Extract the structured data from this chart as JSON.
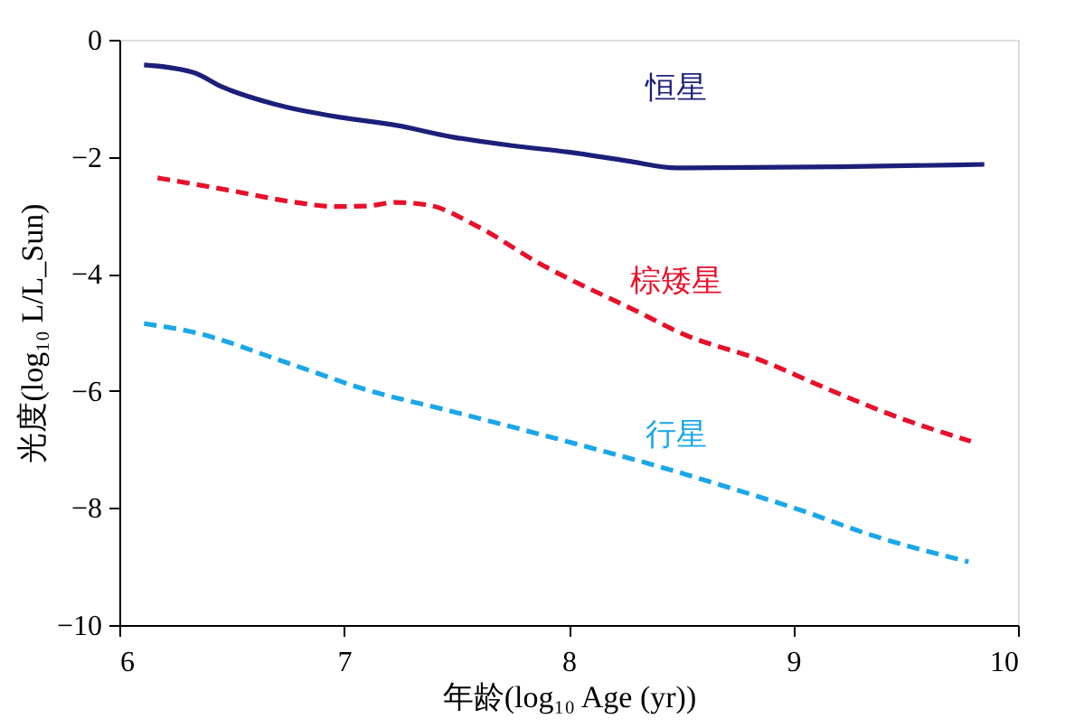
{
  "chart_data": {
    "type": "line",
    "xlabel": "年龄(log₁₀ Age (yr))",
    "ylabel": "光度(log₁₀ L/L_Sun)",
    "xlim": [
      6,
      10
    ],
    "xticks": [
      6,
      7,
      8,
      9,
      10
    ],
    "ylim": [
      -10,
      0
    ],
    "yticks": [
      -10,
      -8,
      -6,
      -4,
      -2,
      0
    ],
    "grid": false,
    "series": [
      {
        "name": "恒星",
        "color": "#1c1f7a",
        "line_style": "solid",
        "x": [
          6.11,
          6.33,
          6.46,
          6.69,
          6.99,
          7.23,
          7.48,
          7.75,
          8.0,
          8.26,
          8.48,
          9.21,
          9.85
        ],
        "values": [
          -0.43,
          -0.56,
          -0.81,
          -1.1,
          -1.33,
          -1.46,
          -1.66,
          -1.81,
          -1.92,
          -2.07,
          -2.19,
          -2.17,
          -2.13
        ]
      },
      {
        "name": "棕矮星",
        "color": "#e8102a",
        "line_style": "dashed",
        "x": [
          6.17,
          6.5,
          6.77,
          6.96,
          7.1,
          7.23,
          7.37,
          7.59,
          7.86,
          8.32,
          8.51,
          8.83,
          9.21,
          9.48,
          9.79
        ],
        "values": [
          -2.36,
          -2.58,
          -2.77,
          -2.85,
          -2.84,
          -2.78,
          -2.82,
          -3.18,
          -3.8,
          -4.67,
          -5.03,
          -5.44,
          -6.06,
          -6.47,
          -6.86
        ]
      },
      {
        "name": "行星",
        "color": "#1aa7e8",
        "line_style": "dashed",
        "x": [
          6.11,
          6.31,
          6.77,
          7.1,
          7.48,
          7.96,
          8.4,
          8.67,
          9.05,
          9.32,
          9.78
        ],
        "values": [
          -4.85,
          -4.98,
          -5.55,
          -5.98,
          -6.35,
          -6.83,
          -7.29,
          -7.6,
          -8.06,
          -8.43,
          -8.92
        ]
      }
    ]
  }
}
